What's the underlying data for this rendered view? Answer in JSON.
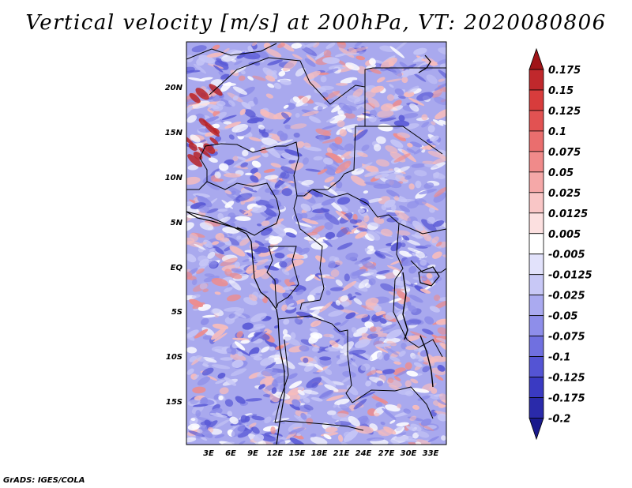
{
  "title": "Vertical velocity [m/s] at 200hPa, VT: 2020080806",
  "credit": "GrADS: IGES/COLA",
  "lat_labels": [
    "20N",
    "15N",
    "10N",
    "5N",
    "EQ",
    "5S",
    "10S",
    "15S"
  ],
  "lon_labels": [
    "3E",
    "6E",
    "9E",
    "12E",
    "15E",
    "18E",
    "21E",
    "24E",
    "27E",
    "30E",
    "33E"
  ],
  "colorbar": {
    "labels": [
      "0.175",
      "0.15",
      "0.125",
      "0.1",
      "0.075",
      "0.05",
      "0.025",
      "0.0125",
      "0.005",
      "-0.005",
      "-0.0125",
      "-0.025",
      "-0.05",
      "-0.075",
      "-0.1",
      "-0.125",
      "-0.175",
      "-0.2"
    ],
    "colors": [
      "#a01418",
      "#c0282c",
      "#d83c3c",
      "#e25252",
      "#ea6e6e",
      "#f08a8a",
      "#f5a8a8",
      "#f9c6c6",
      "#fce0e0",
      "#ffffff",
      "#e2e2fb",
      "#c8c8f6",
      "#aaaaf0",
      "#8e8eea",
      "#7070e0",
      "#5454d4",
      "#3a3ac2",
      "#2a2aaa",
      "#1a1a8c"
    ]
  },
  "field_colors": {
    "base": "#a9a9ee",
    "ascent_light": "#f7bcbc",
    "ascent_mid": "#ee8c8c",
    "ascent_strong": "#b82428",
    "neutral": "#ffffff",
    "descent_light": "#c6c6f6",
    "descent_mid": "#8c8ce8",
    "descent_strong": "#5a5ad6"
  }
}
